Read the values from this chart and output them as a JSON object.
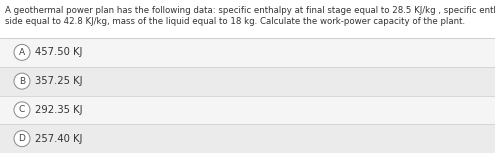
{
  "title_line1": "A geothermal power plan has the following data: specific enthalpy at final stage equal to 28.5 KJ/kg , specific enthalpy at well head",
  "title_line2": "side equal to 42.8 KJ/kg, mass of the liquid equal to 18 kg. Calculate the work-power capacity of the plant.",
  "options": [
    {
      "label": "A",
      "text": "457.50 KJ"
    },
    {
      "label": "B",
      "text": "357.25 KJ"
    },
    {
      "label": "C",
      "text": "292.35 KJ"
    },
    {
      "label": "D",
      "text": "257.40 KJ"
    }
  ],
  "bg_color": "#e8e8e8",
  "title_bg": "#ffffff",
  "option_bg": "#ebebeb",
  "option_alt_bg": "#f5f5f5",
  "circle_facecolor": "#ffffff",
  "circle_edgecolor": "#888888",
  "text_color": "#333333",
  "label_color": "#444444",
  "separator_color": "#cccccc",
  "title_fontsize": 6.2,
  "option_fontsize": 7.2,
  "label_fontsize": 6.5,
  "figwidth": 4.95,
  "figheight": 1.53,
  "dpi": 100
}
